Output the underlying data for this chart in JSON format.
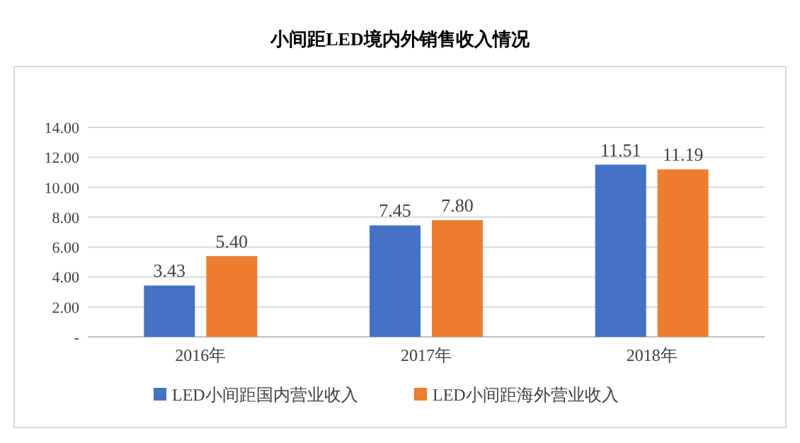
{
  "chart_data": {
    "type": "bar",
    "title": "小间距LED境内外销售收入情况",
    "categories": [
      "2016年",
      "2017年",
      "2018年"
    ],
    "series": [
      {
        "name": "LED小间距国内营业收入",
        "color": "#4472c4",
        "values": [
          3.43,
          7.45,
          11.51
        ],
        "value_labels": [
          "3.43",
          "7.45",
          "11.51"
        ]
      },
      {
        "name": "LED小间距海外营业收入",
        "color": "#ed7d31",
        "values": [
          5.4,
          7.8,
          11.19
        ],
        "value_labels": [
          "5.40",
          "7.80",
          "11.19"
        ]
      }
    ],
    "ylim": [
      0,
      14
    ],
    "yticks": [
      {
        "value": 0,
        "label": "-"
      },
      {
        "value": 2,
        "label": "2.00"
      },
      {
        "value": 4,
        "label": "4.00"
      },
      {
        "value": 6,
        "label": "6.00"
      },
      {
        "value": 8,
        "label": "8.00"
      },
      {
        "value": 10,
        "label": "10.00"
      },
      {
        "value": 12,
        "label": "12.00"
      },
      {
        "value": 14,
        "label": "14.00"
      }
    ],
    "grid": "y",
    "legend": "bottom"
  }
}
